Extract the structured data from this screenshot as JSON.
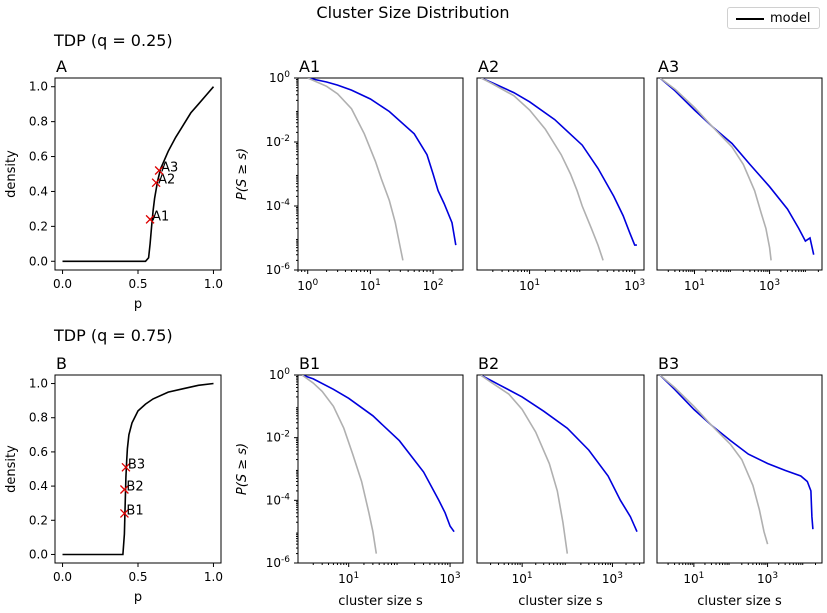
{
  "figure": {
    "suptitle": "Cluster Size Distribution",
    "legend": {
      "label": "model",
      "color": "#000000"
    }
  },
  "colors": {
    "model": "#000000",
    "blue": "#0000dd",
    "gray": "#b0b0b0",
    "marker": "#dd0000"
  },
  "chart_data": [
    {
      "id": "A",
      "type": "line",
      "panel_label": "A",
      "group_title": "TDP (q = 0.25)",
      "xlabel": "p",
      "ylabel": "density",
      "xlim": [
        -0.05,
        1.05
      ],
      "ylim": [
        -0.05,
        1.05
      ],
      "xticks": [
        0.0,
        0.5,
        1.0
      ],
      "xticklabels": [
        "0.0",
        "0.5",
        "1.0"
      ],
      "yticks": [
        0.0,
        0.2,
        0.4,
        0.6,
        0.8,
        1.0
      ],
      "yticklabels": [
        "0.0",
        "0.2",
        "0.4",
        "0.6",
        "0.8",
        "1.0"
      ],
      "series": [
        {
          "name": "model",
          "x": [
            0,
            0.55,
            0.57,
            0.58,
            0.59,
            0.6,
            0.61,
            0.63,
            0.65,
            0.7,
            0.75,
            0.8,
            0.85,
            0.9,
            0.95,
            1.0
          ],
          "y": [
            0,
            0,
            0.02,
            0.1,
            0.2,
            0.29,
            0.36,
            0.46,
            0.53,
            0.63,
            0.71,
            0.78,
            0.85,
            0.9,
            0.95,
            1.0
          ]
        }
      ],
      "markers": [
        {
          "label": "A1",
          "x": 0.58,
          "y": 0.24
        },
        {
          "label": "A2",
          "x": 0.62,
          "y": 0.45
        },
        {
          "label": "A3",
          "x": 0.64,
          "y": 0.52
        }
      ]
    },
    {
      "id": "B",
      "type": "line",
      "panel_label": "B",
      "group_title": "TDP (q = 0.75)",
      "xlabel": "p",
      "ylabel": "density",
      "xlim": [
        -0.05,
        1.05
      ],
      "ylim": [
        -0.05,
        1.05
      ],
      "xticks": [
        0.0,
        0.5,
        1.0
      ],
      "xticklabels": [
        "0.0",
        "0.5",
        "1.0"
      ],
      "yticks": [
        0.0,
        0.2,
        0.4,
        0.6,
        0.8,
        1.0
      ],
      "yticklabels": [
        "0.0",
        "0.2",
        "0.4",
        "0.6",
        "0.8",
        "1.0"
      ],
      "series": [
        {
          "name": "model",
          "x": [
            0,
            0.4,
            0.41,
            0.415,
            0.42,
            0.425,
            0.43,
            0.44,
            0.46,
            0.5,
            0.55,
            0.6,
            0.7,
            0.8,
            0.9,
            1.0
          ],
          "y": [
            0,
            0,
            0.12,
            0.3,
            0.45,
            0.55,
            0.62,
            0.7,
            0.77,
            0.84,
            0.88,
            0.91,
            0.95,
            0.97,
            0.99,
            1.0
          ]
        }
      ],
      "markers": [
        {
          "label": "B1",
          "x": 0.41,
          "y": 0.24
        },
        {
          "label": "B2",
          "x": 0.41,
          "y": 0.38
        },
        {
          "label": "B3",
          "x": 0.42,
          "y": 0.51
        }
      ]
    },
    {
      "id": "A1",
      "type": "line",
      "panel_label": "A1",
      "xscale": "log",
      "yscale": "log",
      "xlim": [
        0.7,
        300
      ],
      "ylim": [
        1e-06,
        1
      ],
      "xticks": [
        1,
        10,
        100
      ],
      "xticklabels": [
        "10^0",
        "10^1",
        "10^2"
      ],
      "yticks": [
        1e-06,
        0.0001,
        0.01,
        1
      ],
      "yticklabels": [
        "10^-6",
        "10^-4",
        "10^-2",
        "10^0"
      ],
      "ylabel": "P(S ≥ s)",
      "xlabel": "",
      "series": [
        {
          "color": "blue",
          "x": [
            1,
            2,
            3,
            5,
            10,
            20,
            50,
            80,
            100,
            120,
            150,
            200,
            230
          ],
          "y": [
            1,
            0.75,
            0.6,
            0.42,
            0.22,
            0.09,
            0.018,
            0.004,
            0.001,
            0.0003,
            0.00012,
            3e-05,
            6e-06
          ]
        },
        {
          "color": "gray",
          "x": [
            1,
            2,
            3,
            5,
            8,
            12,
            15,
            20,
            25,
            30,
            33
          ],
          "y": [
            1,
            0.55,
            0.32,
            0.11,
            0.018,
            0.0025,
            0.0007,
            0.00015,
            3e-05,
            5e-06,
            2e-06
          ]
        }
      ]
    },
    {
      "id": "A2",
      "type": "line",
      "panel_label": "A2",
      "xscale": "log",
      "yscale": "log",
      "xlim": [
        1,
        1500
      ],
      "ylim": [
        1e-06,
        1
      ],
      "xticks": [
        10,
        1000
      ],
      "xticklabels": [
        "10^1",
        "10^3"
      ],
      "yticks": [],
      "yticklabels": [],
      "ylabel": "",
      "xlabel": "",
      "series": [
        {
          "color": "blue",
          "x": [
            1.2,
            2,
            5,
            10,
            30,
            100,
            200,
            400,
            600,
            800,
            1000,
            1100
          ],
          "y": [
            1,
            0.7,
            0.35,
            0.18,
            0.05,
            0.008,
            0.0015,
            0.0002,
            5e-05,
            1.5e-05,
            6e-06,
            6e-06
          ]
        },
        {
          "color": "gray",
          "x": [
            1.2,
            2,
            5,
            10,
            20,
            40,
            60,
            80,
            100,
            150,
            200,
            250
          ],
          "y": [
            1,
            0.65,
            0.28,
            0.1,
            0.025,
            0.004,
            0.001,
            0.0003,
            0.0001,
            2e-05,
            6e-06,
            2e-06
          ]
        }
      ]
    },
    {
      "id": "A3",
      "type": "line",
      "panel_label": "A3",
      "xscale": "log",
      "yscale": "log",
      "xlim": [
        1,
        25000
      ],
      "ylim": [
        1e-06,
        1
      ],
      "xticks": [
        10,
        1000
      ],
      "xticklabels": [
        "10^1",
        "10^3"
      ],
      "yticks": [],
      "yticklabels": [],
      "ylabel": "",
      "xlabel": "",
      "series": [
        {
          "color": "blue",
          "x": [
            1.2,
            3,
            10,
            30,
            100,
            300,
            1000,
            3000,
            6000,
            9000,
            12000,
            15000
          ],
          "y": [
            1,
            0.4,
            0.1,
            0.03,
            0.009,
            0.002,
            0.0004,
            8e-05,
            2e-05,
            8e-06,
            1e-05,
            3e-06
          ]
        },
        {
          "color": "gray",
          "x": [
            1.2,
            3,
            10,
            30,
            100,
            200,
            400,
            600,
            800,
            1000,
            1100
          ],
          "y": [
            1,
            0.45,
            0.12,
            0.03,
            0.007,
            0.002,
            0.0003,
            6e-05,
            2e-05,
            5e-06,
            2e-06
          ]
        }
      ]
    },
    {
      "id": "B1",
      "type": "line",
      "panel_label": "B1",
      "xscale": "log",
      "yscale": "log",
      "xlim": [
        1,
        1800
      ],
      "ylim": [
        1e-06,
        1
      ],
      "xticks": [
        10,
        1000
      ],
      "xticklabels": [
        "10^1",
        "10^3"
      ],
      "yticks": [
        1e-06,
        0.0001,
        0.01,
        1
      ],
      "yticklabels": [
        "10^-6",
        "10^-4",
        "10^-2",
        "10^0"
      ],
      "ylabel": "P(S ≥ s)",
      "xlabel": "cluster size s",
      "series": [
        {
          "color": "blue",
          "x": [
            1.2,
            2,
            5,
            10,
            30,
            100,
            300,
            600,
            800,
            1000,
            1200
          ],
          "y": [
            1,
            0.75,
            0.35,
            0.18,
            0.05,
            0.008,
            0.0008,
            0.0001,
            4e-05,
            1.5e-05,
            1e-05
          ]
        },
        {
          "color": "gray",
          "x": [
            1.2,
            2,
            3,
            5,
            8,
            12,
            18,
            25,
            30,
            35
          ],
          "y": [
            1,
            0.55,
            0.3,
            0.1,
            0.02,
            0.003,
            0.0004,
            4e-05,
            1e-05,
            2e-06
          ]
        }
      ]
    },
    {
      "id": "B2",
      "type": "line",
      "panel_label": "B2",
      "xscale": "log",
      "yscale": "log",
      "xlim": [
        1,
        5000
      ],
      "ylim": [
        1e-06,
        1
      ],
      "xticks": [
        10,
        1000
      ],
      "xticklabels": [
        "10^1",
        "10^3"
      ],
      "yticks": [],
      "yticklabels": [],
      "ylabel": "",
      "xlabel": "cluster size s",
      "series": [
        {
          "color": "blue",
          "x": [
            1.2,
            3,
            10,
            30,
            100,
            300,
            800,
            1500,
            2500,
            3500
          ],
          "y": [
            1,
            0.5,
            0.2,
            0.07,
            0.02,
            0.004,
            0.0006,
            0.0001,
            3e-05,
            1e-05
          ]
        },
        {
          "color": "gray",
          "x": [
            1.2,
            2,
            5,
            10,
            20,
            40,
            60,
            80,
            100
          ],
          "y": [
            1,
            0.6,
            0.25,
            0.08,
            0.015,
            0.0015,
            0.0002,
            2e-05,
            2e-06
          ]
        }
      ]
    },
    {
      "id": "B3",
      "type": "line",
      "panel_label": "B3",
      "xscale": "log",
      "yscale": "log",
      "xlim": [
        1,
        30000
      ],
      "ylim": [
        1e-06,
        1
      ],
      "xticks": [
        10,
        1000
      ],
      "xticklabels": [
        "10^1",
        "10^3"
      ],
      "yticks": [],
      "yticklabels": [],
      "ylabel": "",
      "xlabel": "cluster size s",
      "series": [
        {
          "color": "blue",
          "x": [
            1.2,
            3,
            10,
            30,
            100,
            300,
            1000,
            3000,
            8000,
            12000,
            15000,
            16000,
            17000
          ],
          "y": [
            1,
            0.35,
            0.08,
            0.025,
            0.008,
            0.003,
            0.0015,
            0.0009,
            0.0006,
            0.0004,
            0.0002,
            3e-05,
            1.2e-05
          ]
        },
        {
          "color": "gray",
          "x": [
            1.2,
            3,
            10,
            30,
            100,
            200,
            400,
            600,
            800,
            1000
          ],
          "y": [
            1,
            0.4,
            0.1,
            0.025,
            0.006,
            0.002,
            0.0003,
            5e-05,
            1e-05,
            4e-06
          ]
        }
      ]
    }
  ]
}
